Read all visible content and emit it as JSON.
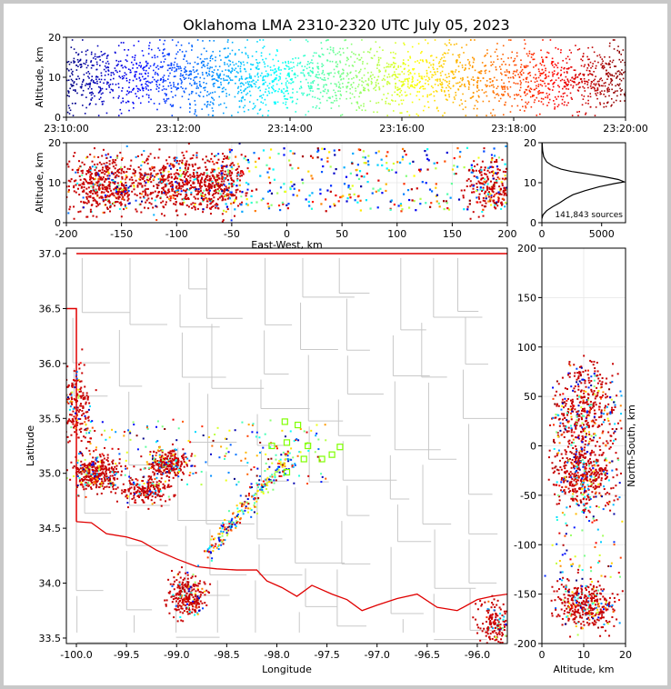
{
  "title": "Oklahoma LMA 2310-2320 UTC July 05, 2023",
  "colors": {
    "dense": "#c80000",
    "county_lines": "#c8c8c8",
    "state_border": "#e00000",
    "network_stations": "#7fff00"
  },
  "chart_data": [
    {
      "id": "time-height",
      "type": "scatter",
      "xlabel": "",
      "ylabel": "Altitude, km",
      "xlim": [
        "23:10:00",
        "23:20:00"
      ],
      "ylim": [
        0,
        20
      ],
      "xticks": [
        "23:10:00",
        "23:12:00",
        "23:14:00",
        "23:16:00",
        "23:18:00",
        "23:20:00"
      ],
      "yticks": [
        0,
        10,
        20
      ],
      "note_color": "points colored by time, blue to red"
    },
    {
      "id": "ew-altitude",
      "type": "scatter",
      "xlabel": "East-West, km",
      "ylabel": "Altitude, km",
      "xlim": [
        -200,
        200
      ],
      "ylim": [
        0,
        20
      ],
      "xticks": [
        -200,
        -150,
        -100,
        -50,
        0,
        50,
        100,
        150,
        200
      ],
      "yticks": [
        0,
        10,
        20
      ]
    },
    {
      "id": "altitude-histogram",
      "type": "line",
      "xlim": [
        0,
        7000
      ],
      "ylim": [
        0,
        20
      ],
      "xticks": [
        0,
        5000
      ],
      "yticks": [
        0,
        10,
        20
      ],
      "annotation": "141,843 sources",
      "x": [
        0,
        100,
        400,
        900,
        1500,
        2000,
        2600,
        3600,
        4800,
        6100,
        6900,
        6400,
        5200,
        3800,
        2500,
        1600,
        900,
        400,
        150,
        60,
        20
      ],
      "y": [
        1,
        2,
        3,
        4,
        5,
        6,
        7,
        8,
        9,
        9.8,
        10.2,
        10.8,
        11.5,
        12.2,
        12.8,
        13.4,
        14.2,
        15.2,
        16.5,
        18,
        20
      ]
    },
    {
      "id": "plan-view",
      "type": "scatter",
      "xlabel": "Longitude",
      "ylabel": "Latitude",
      "xlim": [
        -100.1,
        -95.7
      ],
      "ylim": [
        33.45,
        37.05
      ],
      "xticks": [
        -100.0,
        -99.5,
        -99.0,
        -98.5,
        -98.0,
        -97.5,
        -97.0,
        -96.5,
        -96.0
      ],
      "yticks": [
        33.5,
        34.0,
        34.5,
        35.0,
        35.5,
        36.0,
        36.5,
        37.0
      ],
      "stations": [
        {
          "lon": -97.92,
          "lat": 35.47
        },
        {
          "lon": -97.79,
          "lat": 35.44
        },
        {
          "lon": -97.9,
          "lat": 35.28
        },
        {
          "lon": -98.05,
          "lat": 35.25
        },
        {
          "lon": -97.69,
          "lat": 35.25
        },
        {
          "lon": -97.45,
          "lat": 35.17
        },
        {
          "lon": -97.37,
          "lat": 35.24
        },
        {
          "lon": -97.55,
          "lat": 35.13
        },
        {
          "lon": -97.73,
          "lat": 35.13
        },
        {
          "lon": -97.9,
          "lat": 35.01
        }
      ]
    },
    {
      "id": "altitude-ns",
      "type": "scatter",
      "xlabel": "Altitude, km",
      "ylabel": "North-South, km",
      "xlim": [
        0,
        20
      ],
      "ylim": [
        -200,
        200
      ],
      "xticks": [
        0,
        10,
        20
      ],
      "yticks": [
        -200,
        -150,
        -100,
        -50,
        0,
        50,
        100,
        150,
        200
      ]
    }
  ]
}
